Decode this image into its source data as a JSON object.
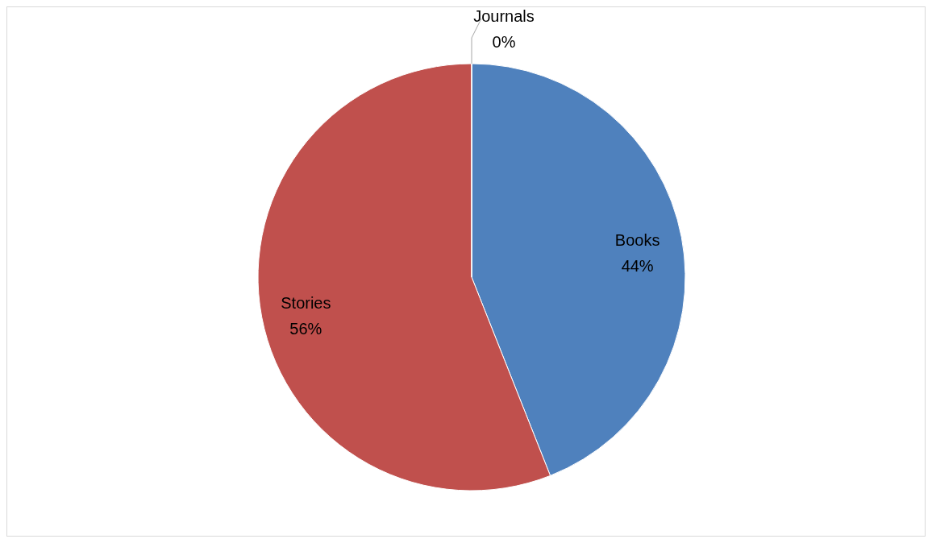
{
  "chart_data": {
    "type": "pie",
    "categories": [
      "Books",
      "Stories",
      "Journals"
    ],
    "values": [
      44,
      56,
      0
    ],
    "colors": [
      "#4f81bd",
      "#c0504d",
      "#9bbb59"
    ],
    "value_labels": [
      "44%",
      "56%",
      "0%"
    ]
  }
}
